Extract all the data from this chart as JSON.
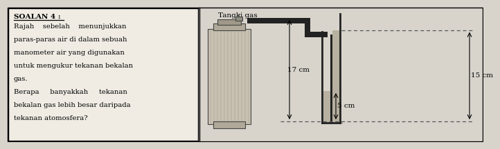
{
  "bg_color": "#d8d4cc",
  "left_panel_bg": "#f0ece4",
  "right_panel_bg": "#d8d4cc",
  "title": "SOALAN 4 :",
  "lines": [
    "Rajah    sebelah    menunjukkan",
    "paras-paras air di dalam sebuah",
    "manometer air yang digunakan",
    "untuk mengukur tekanan bekalan",
    "gas.",
    "Berapa     banyakkah     tekanan",
    "bekalan gas lebih besar daripada",
    "tekanan atomosfera?"
  ],
  "diagram_title": "Tangki gas",
  "label_17cm": "17 cm",
  "label_5cm": "5 cm",
  "label_15cm": "15 cm",
  "pipe_color": "#222222",
  "water_color": "#b8b0a0",
  "tank_fill": "#c8c0b0",
  "tank_edge": "#444444"
}
